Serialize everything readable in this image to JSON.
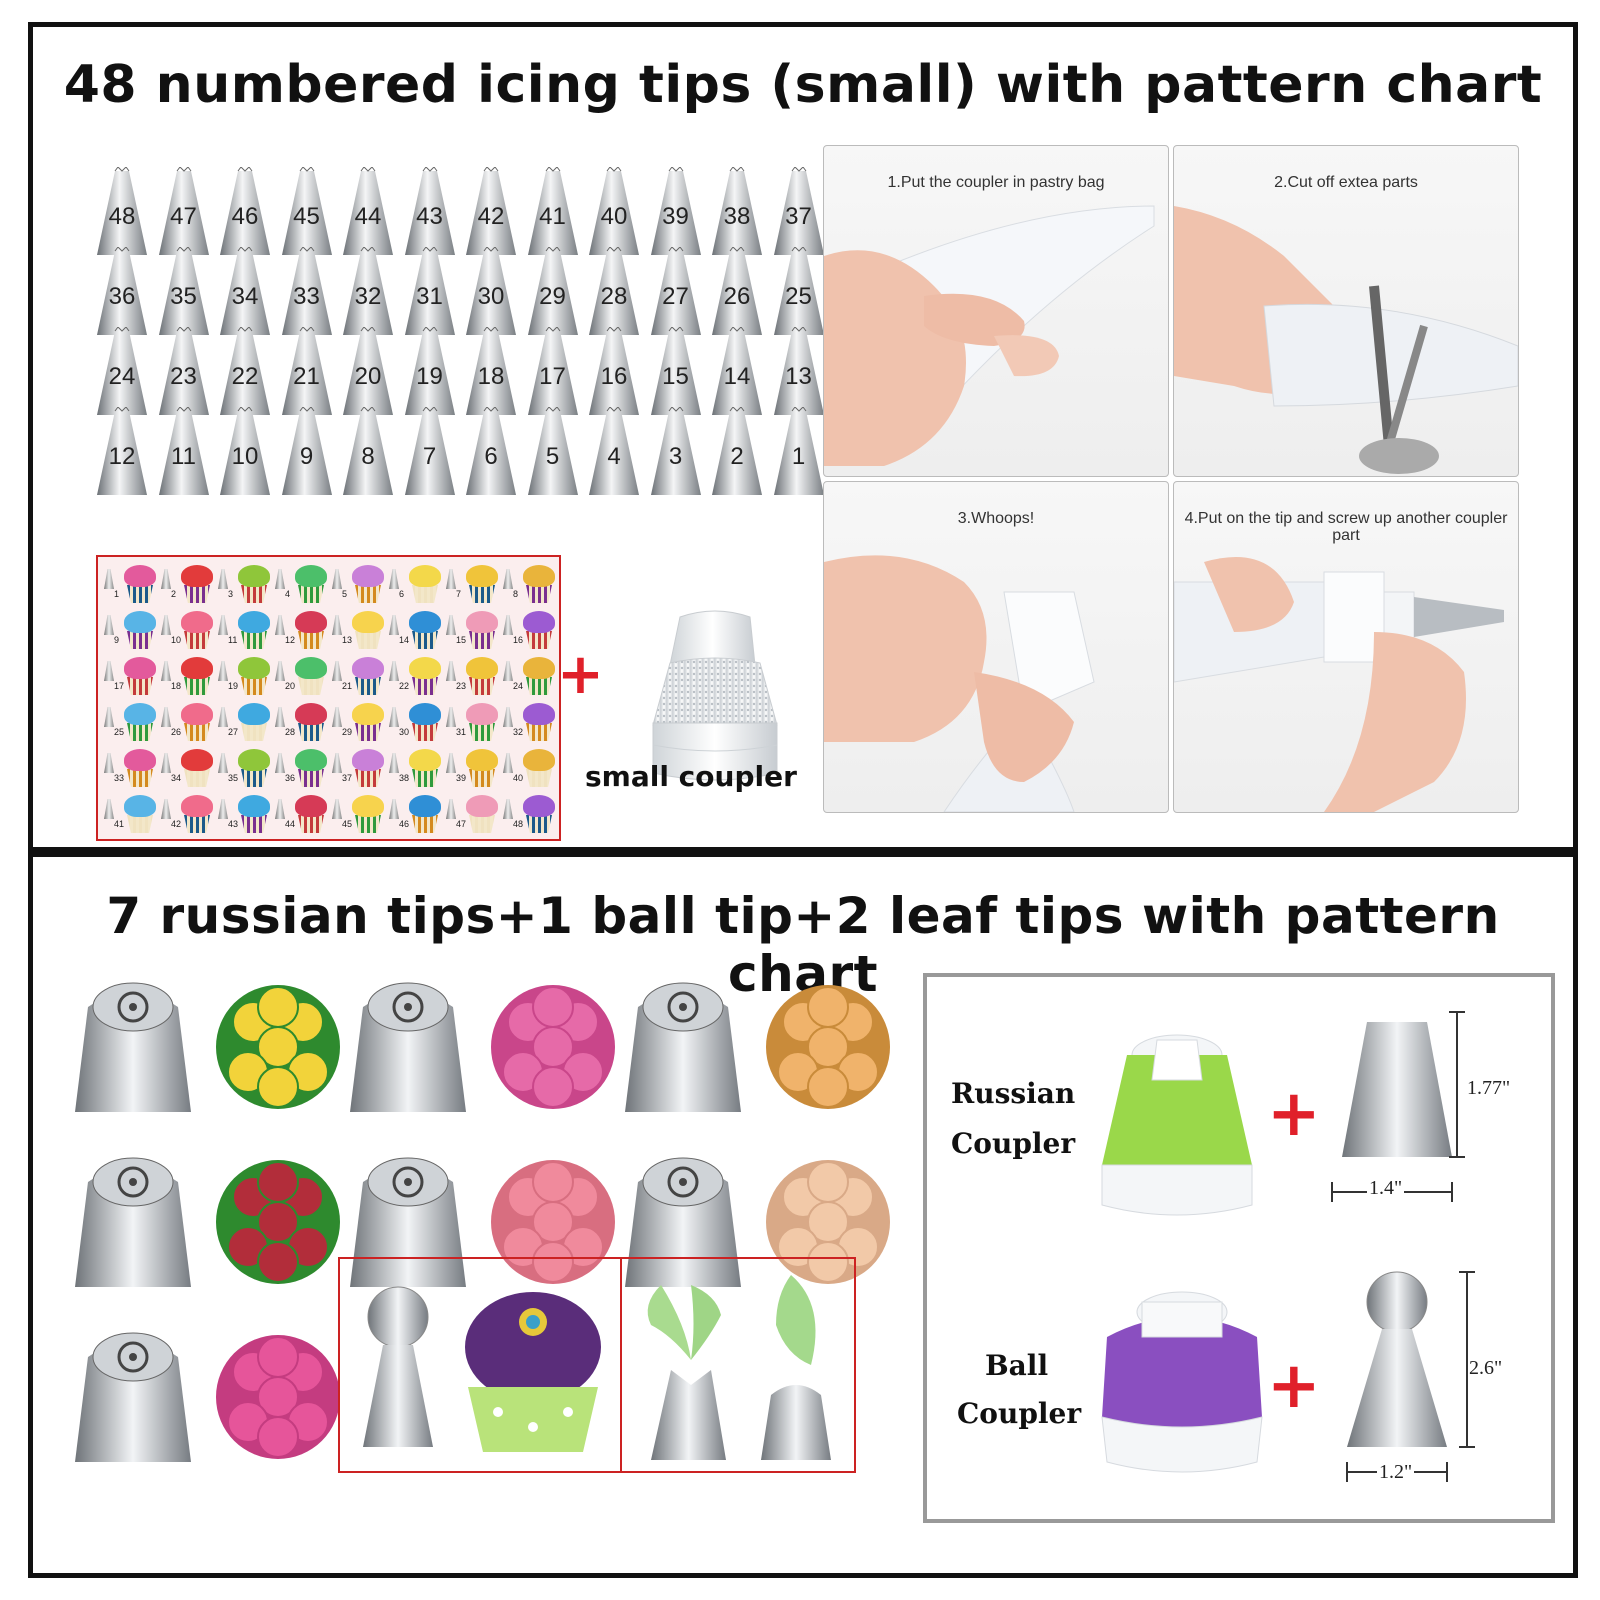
{
  "top_panel": {
    "title": "48 numbered icing tips (small) with pattern chart",
    "tip_numbers": [
      [
        "48",
        "47",
        "46",
        "45",
        "44",
        "43",
        "42",
        "41",
        "40",
        "39",
        "38",
        "37"
      ],
      [
        "36",
        "35",
        "34",
        "33",
        "32",
        "31",
        "30",
        "29",
        "28",
        "27",
        "26",
        "25"
      ],
      [
        "24",
        "23",
        "22",
        "21",
        "20",
        "19",
        "18",
        "17",
        "16",
        "15",
        "14",
        "13"
      ],
      [
        "12",
        "11",
        "10",
        "9",
        "8",
        "7",
        "6",
        "5",
        "4",
        "3",
        "2",
        "1"
      ]
    ],
    "chart_numbers": [
      [
        "1",
        "2",
        "3",
        "4",
        "5",
        "6",
        "7",
        "8"
      ],
      [
        "9",
        "10",
        "11",
        "12",
        "13",
        "14",
        "15",
        "16"
      ],
      [
        "17",
        "18",
        "19",
        "20",
        "21",
        "22",
        "23",
        "24"
      ],
      [
        "25",
        "26",
        "27",
        "28",
        "29",
        "30",
        "31",
        "32"
      ],
      [
        "33",
        "34",
        "35",
        "36",
        "37",
        "38",
        "39",
        "40"
      ],
      [
        "41",
        "42",
        "43",
        "44",
        "45",
        "46",
        "47",
        "48"
      ]
    ],
    "plus_symbol": "+",
    "small_coupler_label": "small coupler",
    "steps": [
      {
        "caption": "1.Put the coupler in pastry bag"
      },
      {
        "caption": "2.Cut off extea parts"
      },
      {
        "caption": "3.Whoops!"
      },
      {
        "caption": "4.Put on the tip and screw up another coupler part"
      }
    ]
  },
  "bottom_panel": {
    "title": "7 russian tips+1 ball tip+2 leaf tips with pattern chart",
    "russian_coupler_label_1": "Russian",
    "russian_coupler_label_2": "Coupler",
    "ball_coupler_label_1": "Ball",
    "ball_coupler_label_2": "Coupler",
    "plus_symbol": "+",
    "russian_tip_height": "1.77\"",
    "russian_tip_width": "1.4\"",
    "ball_tip_height": "2.6\"",
    "ball_tip_width": "1.2\""
  },
  "colors": {
    "border": "#111111",
    "accent_red": "#e0202a",
    "russian_coupler_green": "#9ad84a",
    "ball_coupler_purple": "#8a4fc0"
  }
}
